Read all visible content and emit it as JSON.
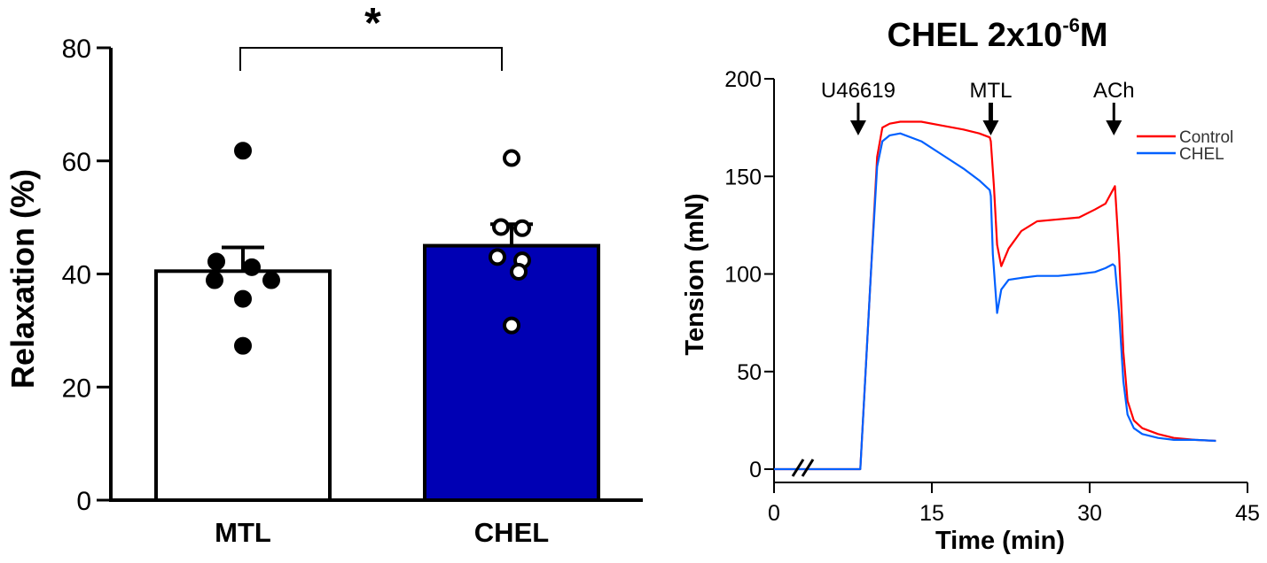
{
  "chart_data": [
    {
      "type": "bar",
      "title": "",
      "xlabel": "",
      "ylabel": "Relaxation (%)",
      "ylim": [
        0,
        80
      ],
      "yticks": [
        0,
        20,
        40,
        60,
        80
      ],
      "categories": [
        "MTL",
        "CHEL"
      ],
      "values": [
        40.5,
        45.0
      ],
      "sem": [
        4.2,
        3.8
      ],
      "bar_colors": [
        "#ffffff",
        "#0000b4"
      ],
      "points": [
        [
          61.8,
          42.2,
          41.2,
          38.9,
          38.9,
          35.6,
          27.3
        ],
        [
          60.5,
          48.3,
          48.1,
          43.0,
          42.4,
          40.4,
          30.9
        ]
      ],
      "point_fill": [
        "#000000",
        "#ffffff"
      ],
      "significance": {
        "label": "*",
        "between": [
          "MTL",
          "CHEL"
        ],
        "y": 80
      }
    },
    {
      "type": "line",
      "title": {
        "prefix": "CHEL 2x10",
        "superscript": "-6",
        "suffix": "M"
      },
      "xlabel": "Time (min)",
      "ylabel": "Tension (mN)",
      "xlim": [
        0,
        45
      ],
      "ylim": [
        0,
        200
      ],
      "xticks": [
        0,
        15,
        30,
        45
      ],
      "yticks": [
        0,
        50,
        100,
        150,
        200
      ],
      "axis_break": "//",
      "legend": {
        "position": "top-right",
        "entries": [
          "Control",
          "CHEL"
        ]
      },
      "annotations": [
        {
          "label": "U46619",
          "x": 8.0
        },
        {
          "label": "MTL",
          "x": 20.6
        },
        {
          "label": "ACh",
          "x": 32.3
        }
      ],
      "series": [
        {
          "name": "Control",
          "color": "#ff0000",
          "x": [
            0,
            8.2,
            8.6,
            9.2,
            9.8,
            10.3,
            11,
            12,
            14,
            16,
            18,
            19.5,
            20.5,
            20.6,
            20.9,
            21.2,
            21.6,
            22.3,
            23.5,
            25,
            27,
            29,
            30.5,
            31.5,
            32.2,
            32.4,
            32.8,
            33.2,
            33.6,
            34.2,
            35,
            36.5,
            38,
            40,
            42
          ],
          "y": [
            0,
            0,
            40,
            100,
            160,
            175,
            177,
            178,
            178,
            176,
            174,
            172,
            170,
            168,
            145,
            115,
            104,
            113,
            122,
            127,
            128,
            129,
            133,
            136,
            143,
            145,
            110,
            60,
            35,
            25,
            21,
            18,
            16,
            15,
            14.5
          ]
        },
        {
          "name": "CHEL",
          "color": "#0060ff",
          "x": [
            0,
            8.2,
            8.6,
            9.2,
            9.8,
            10.3,
            11,
            12,
            14,
            16,
            18,
            19.5,
            20.5,
            20.6,
            20.8,
            21.2,
            21.6,
            22.3,
            23.5,
            25,
            27,
            29,
            30.5,
            31.5,
            32.2,
            32.4,
            32.8,
            33.2,
            33.6,
            34.2,
            35,
            36.5,
            38,
            40,
            42
          ],
          "y": [
            0,
            0,
            40,
            100,
            155,
            168,
            171,
            172,
            168,
            161,
            154,
            148,
            143,
            140,
            110,
            80,
            92,
            97,
            98,
            99,
            99,
            100,
            101,
            103,
            105,
            104,
            80,
            45,
            28,
            21,
            18,
            16,
            15,
            15,
            14.5
          ]
        }
      ]
    }
  ]
}
